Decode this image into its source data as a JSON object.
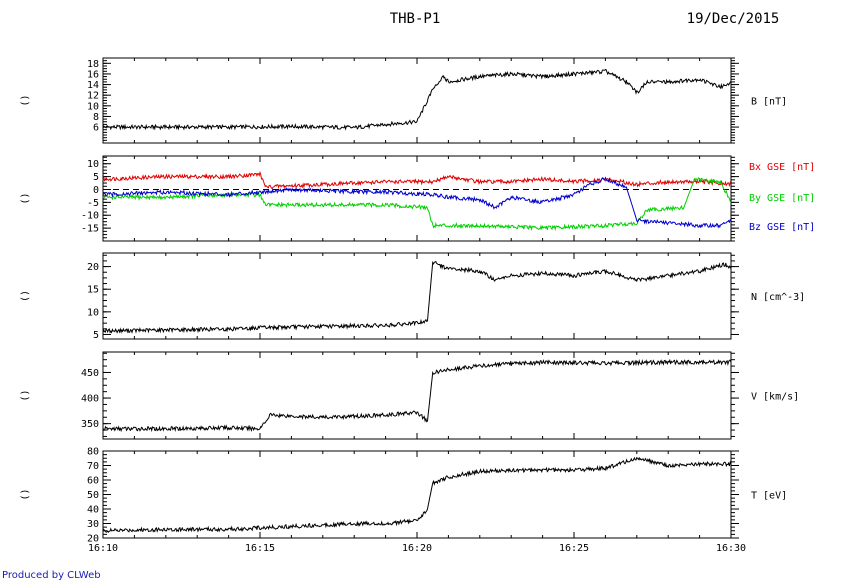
{
  "header": {
    "probe": "THB-P1",
    "date": "19/Dec/2015"
  },
  "footer": {
    "produced_by": "Produced by CLWeb"
  },
  "colors": {
    "axis": "#000000",
    "bx": "#e00000",
    "by": "#00d000",
    "bz": "#0000cc",
    "footer": "#1a1ab8"
  },
  "chart_data": [
    {
      "type": "line",
      "panel": "B",
      "left_label": "()",
      "ylabel": "B [nT]",
      "ylim": [
        3,
        19
      ],
      "yticks": [
        "6",
        "8",
        "10",
        "12",
        "14",
        "16",
        "18"
      ],
      "xlim": [
        "16:10",
        "16:30"
      ],
      "series": [
        {
          "color": "#000000",
          "x": [
            "16:10",
            "16:12",
            "16:14",
            "16:16",
            "16:18",
            "16:19",
            "16:20",
            "16:20:30",
            "16:20:50",
            "16:21",
            "16:22",
            "16:23",
            "16:24",
            "16:25",
            "16:26",
            "16:26:40",
            "16:27",
            "16:27:20",
            "16:28",
            "16:29",
            "16:29:40",
            "16:30"
          ],
          "values": [
            6.0,
            6.0,
            6.0,
            6.1,
            5.9,
            6.5,
            7.0,
            13.0,
            15.5,
            14.5,
            15.5,
            16.0,
            15.5,
            16.0,
            16.5,
            14.5,
            12.5,
            14.5,
            14.5,
            15.0,
            13.5,
            14.5
          ]
        }
      ]
    },
    {
      "type": "line",
      "panel": "B GSE components",
      "left_label": "()",
      "ylim": [
        -20,
        13
      ],
      "yticks": [
        "-15",
        "-10",
        "-5",
        "0",
        "5",
        "10"
      ],
      "zero_line": "dashed",
      "xlim": [
        "16:10",
        "16:30"
      ],
      "series": [
        {
          "name": "Bx GSE [nT]",
          "color": "#e00000",
          "x": [
            "16:10",
            "16:12",
            "16:14",
            "16:15",
            "16:15:10",
            "16:17",
            "16:19",
            "16:20:30",
            "16:21",
            "16:22",
            "16:23",
            "16:24",
            "16:25",
            "16:26",
            "16:27",
            "16:28",
            "16:29",
            "16:30"
          ],
          "values": [
            4,
            5,
            5,
            6,
            1,
            2,
            3,
            3,
            5,
            3,
            3,
            4,
            3,
            4,
            2,
            3,
            3,
            2
          ]
        },
        {
          "name": "By GSE [nT]",
          "color": "#00d000",
          "x": [
            "16:10",
            "16:12",
            "16:14",
            "16:15",
            "16:15:10",
            "16:17",
            "16:19",
            "16:20:20",
            "16:20:30",
            "16:22",
            "16:24",
            "16:26",
            "16:27",
            "16:27:20",
            "16:28:30",
            "16:28:50",
            "16:29:40",
            "16:30"
          ],
          "values": [
            -3,
            -3,
            -2,
            -2,
            -6,
            -6,
            -6,
            -7,
            -14,
            -14,
            -15,
            -14,
            -13,
            -8,
            -7,
            4,
            3,
            -5
          ]
        },
        {
          "name": "Bz GSE [nT]",
          "color": "#0000cc",
          "x": [
            "16:10",
            "16:12",
            "16:14",
            "16:16",
            "16:18",
            "16:19",
            "16:20:30",
            "16:21",
            "16:22",
            "16:22:30",
            "16:23",
            "16:24",
            "16:25",
            "16:25:30",
            "16:26",
            "16:26:40",
            "16:27",
            "16:28",
            "16:29",
            "16:29:40",
            "16:30"
          ],
          "values": [
            -2,
            -1,
            -2,
            0,
            -1,
            -1,
            -2,
            -3,
            -4,
            -7,
            -3,
            -5,
            -2,
            2,
            4,
            1,
            -12,
            -13,
            -14,
            -14,
            -12
          ]
        }
      ]
    },
    {
      "type": "line",
      "panel": "N",
      "left_label": "()",
      "ylabel": "N [cm^-3]",
      "ylim": [
        4,
        23
      ],
      "yticks": [
        "5",
        "10",
        "15",
        "20"
      ],
      "xlim": [
        "16:10",
        "16:30"
      ],
      "series": [
        {
          "color": "#000000",
          "x": [
            "16:10",
            "16:12",
            "16:14",
            "16:15",
            "16:17",
            "16:19",
            "16:20",
            "16:20:20",
            "16:20:30",
            "16:21",
            "16:22",
            "16:22:30",
            "16:23",
            "16:24",
            "16:25",
            "16:26",
            "16:27",
            "16:28",
            "16:29",
            "16:29:50",
            "16:30"
          ],
          "values": [
            5.8,
            6.0,
            6.2,
            6.5,
            6.8,
            7.0,
            7.5,
            8.0,
            21.0,
            19.5,
            19.0,
            17.0,
            18.0,
            18.5,
            18.0,
            19.0,
            17.0,
            18.0,
            19.0,
            20.5,
            19.5
          ]
        }
      ]
    },
    {
      "type": "line",
      "panel": "V",
      "left_label": "()",
      "ylabel": "V [km/s]",
      "ylim": [
        320,
        490
      ],
      "yticks": [
        "350",
        "400",
        "450"
      ],
      "xlim": [
        "16:10",
        "16:30"
      ],
      "series": [
        {
          "color": "#000000",
          "x": [
            "16:10",
            "16:12",
            "16:14",
            "16:15",
            "16:15:20",
            "16:17",
            "16:19",
            "16:20",
            "16:20:20",
            "16:20:30",
            "16:21",
            "16:22",
            "16:24",
            "16:26",
            "16:28",
            "16:30"
          ],
          "values": [
            340,
            340,
            342,
            340,
            367,
            362,
            367,
            372,
            355,
            450,
            455,
            463,
            470,
            468,
            470,
            470
          ]
        }
      ]
    },
    {
      "type": "line",
      "panel": "T",
      "left_label": "()",
      "ylabel": "T [eV]",
      "ylim": [
        20,
        80
      ],
      "yticks": [
        "20",
        "30",
        "40",
        "50",
        "60",
        "70",
        "80"
      ],
      "xlim": [
        "16:10",
        "16:30"
      ],
      "xticks": [
        "16:10",
        "16:15",
        "16:20",
        "16:25",
        "16:30"
      ],
      "series": [
        {
          "color": "#000000",
          "x": [
            "16:10",
            "16:12",
            "16:14",
            "16:16",
            "16:18",
            "16:19",
            "16:20",
            "16:20:20",
            "16:20:30",
            "16:21",
            "16:22",
            "16:24",
            "16:25",
            "16:26",
            "16:27",
            "16:28",
            "16:29",
            "16:30"
          ],
          "values": [
            25,
            26,
            26,
            28,
            30,
            30,
            32,
            40,
            58,
            62,
            66,
            67,
            67,
            68,
            75,
            70,
            71,
            71
          ]
        }
      ]
    }
  ]
}
